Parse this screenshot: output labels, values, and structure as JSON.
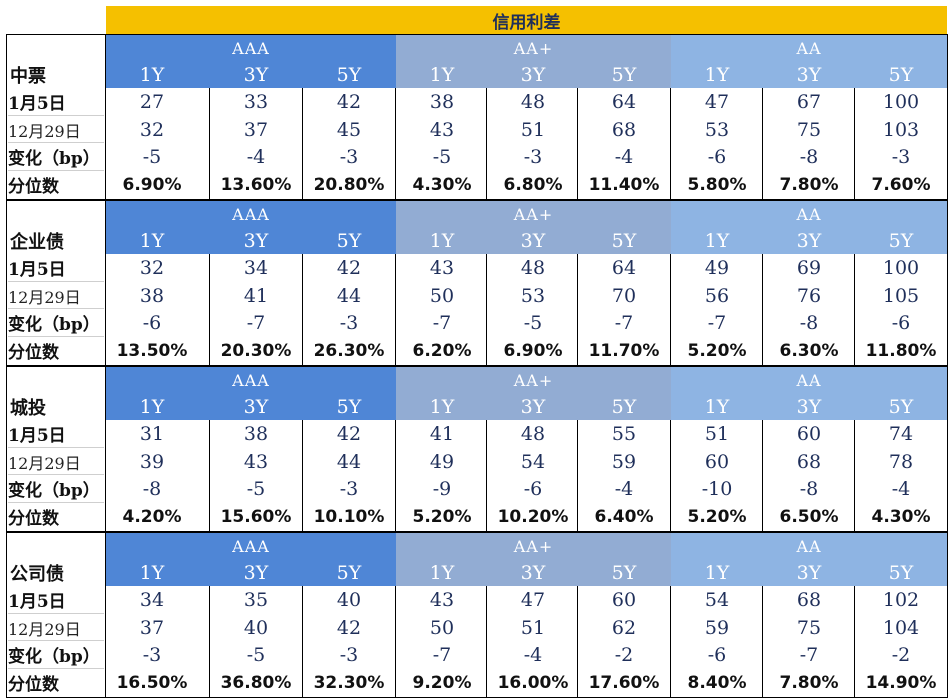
{
  "title": "信用利差",
  "grades": [
    "AAA",
    "AA+",
    "AA"
  ],
  "tenors": [
    "1Y",
    "3Y",
    "5Y"
  ],
  "row_labels": [
    "1月5日",
    "12月29日",
    "变化（bp）",
    "分位数"
  ],
  "colors": {
    "banner": "#f5c000",
    "aaa_header": "#4f86d6",
    "aa_plus_header": "#92acd3",
    "aa_header": "#8eb4e3"
  },
  "sections": [
    {
      "name": "中票",
      "rows": [
        [
          "27",
          "33",
          "42",
          "38",
          "48",
          "64",
          "47",
          "67",
          "100"
        ],
        [
          "32",
          "37",
          "45",
          "43",
          "51",
          "68",
          "53",
          "75",
          "103"
        ],
        [
          "-5",
          "-4",
          "-3",
          "-5",
          "-3",
          "-4",
          "-6",
          "-8",
          "-3"
        ],
        [
          "6.90%",
          "13.60%",
          "20.80%",
          "4.30%",
          "6.80%",
          "11.40%",
          "5.80%",
          "7.80%",
          "7.60%"
        ]
      ]
    },
    {
      "name": "企业债",
      "rows": [
        [
          "32",
          "34",
          "42",
          "43",
          "48",
          "64",
          "49",
          "69",
          "100"
        ],
        [
          "38",
          "41",
          "44",
          "50",
          "53",
          "70",
          "56",
          "76",
          "105"
        ],
        [
          "-6",
          "-7",
          "-3",
          "-7",
          "-5",
          "-7",
          "-7",
          "-8",
          "-6"
        ],
        [
          "13.50%",
          "20.30%",
          "26.30%",
          "6.20%",
          "6.90%",
          "11.70%",
          "5.20%",
          "6.30%",
          "11.80%"
        ]
      ]
    },
    {
      "name": "城投",
      "rows": [
        [
          "31",
          "38",
          "42",
          "41",
          "48",
          "55",
          "51",
          "60",
          "74"
        ],
        [
          "39",
          "43",
          "44",
          "49",
          "54",
          "59",
          "60",
          "68",
          "78"
        ],
        [
          "-8",
          "-5",
          "-3",
          "-9",
          "-6",
          "-4",
          "-10",
          "-8",
          "-4"
        ],
        [
          "4.20%",
          "15.60%",
          "10.10%",
          "5.20%",
          "10.20%",
          "6.40%",
          "5.20%",
          "6.50%",
          "4.30%"
        ]
      ]
    },
    {
      "name": "公司债",
      "rows": [
        [
          "34",
          "35",
          "40",
          "43",
          "47",
          "60",
          "54",
          "68",
          "102"
        ],
        [
          "37",
          "40",
          "42",
          "50",
          "51",
          "62",
          "59",
          "75",
          "104"
        ],
        [
          "-3",
          "-5",
          "-3",
          "-7",
          "-4",
          "-2",
          "-6",
          "-7",
          "-2"
        ],
        [
          "16.50%",
          "36.80%",
          "32.30%",
          "9.20%",
          "16.00%",
          "17.60%",
          "8.40%",
          "7.80%",
          "14.90%"
        ]
      ]
    }
  ]
}
